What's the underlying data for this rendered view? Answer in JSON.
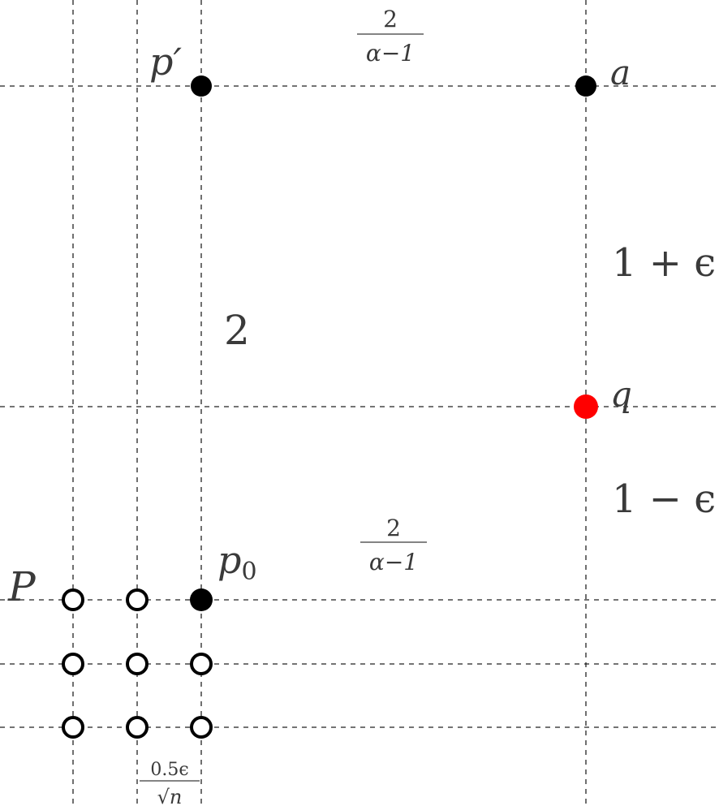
{
  "labels": {
    "p_prime": "p′",
    "a": "a",
    "q": "q",
    "p0_base": "p",
    "p0_sub": "0",
    "P": "P",
    "vertical_two": "2",
    "one_plus_eps": "1 + ϵ",
    "one_minus_eps": "1 − ϵ",
    "frac_top": {
      "numerator": "2",
      "denominator": "α−1"
    },
    "frac_mid": {
      "numerator": "2",
      "denominator": "α−1"
    },
    "frac_bottom": {
      "numerator": "0.5ϵ",
      "denominator": "√n"
    }
  },
  "colors": {
    "filled_point": "#000000",
    "query_point": "#ff0000",
    "open_point_fill": "#ffffff",
    "open_point_stroke": "#000000",
    "grid": "#222222",
    "text": "#3a3a3a"
  },
  "points": {
    "filled": [
      "p_prime",
      "a",
      "p0"
    ],
    "query": [
      "q"
    ],
    "open_grid": {
      "rows": 3,
      "cols": 3,
      "excluded": [
        "p0"
      ]
    }
  }
}
